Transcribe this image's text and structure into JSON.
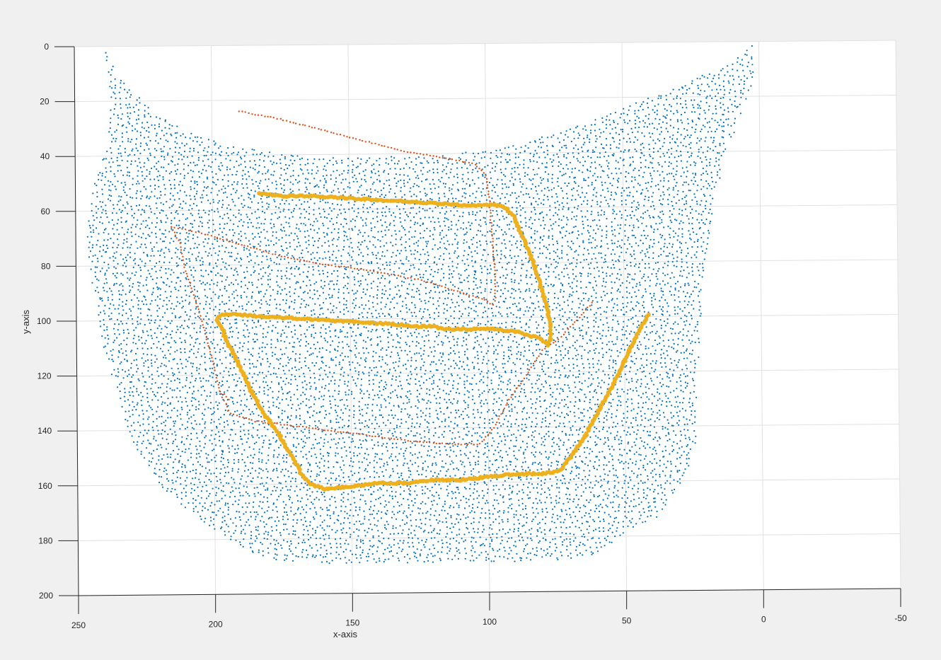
{
  "chart_data": {
    "type": "scatter",
    "title": "",
    "xlabel": "x-axis",
    "ylabel": "y-axis",
    "xlim": [
      250,
      -50
    ],
    "ylim": [
      0,
      200
    ],
    "x_direction": "reversed",
    "y_direction": "reversed",
    "grid": true,
    "x_ticks": [
      "250",
      "200",
      "150",
      "100",
      "50",
      "0",
      "-50"
    ],
    "y_ticks": [
      "0",
      "20",
      "40",
      "60",
      "80",
      "100",
      "120",
      "140",
      "160",
      "180",
      "200"
    ],
    "colors": {
      "series1": "#0072BD",
      "series2": "#D95319",
      "series3": "#EDB120",
      "background": "#f0f0f0",
      "plot_area": "#ffffff",
      "grid": "#e1e1e1"
    },
    "series": [
      {
        "marker": "dot-small",
        "color": "#0072BD",
        "region_outline": [
          [
            239,
            0
          ],
          [
            237,
            5
          ],
          [
            234,
            11
          ],
          [
            228,
            17
          ],
          [
            218,
            26
          ],
          [
            205,
            33
          ],
          [
            190,
            37
          ],
          [
            170,
            40
          ],
          [
            150,
            41
          ],
          [
            130,
            41
          ],
          [
            110,
            40
          ],
          [
            90,
            37
          ],
          [
            75,
            33
          ],
          [
            55,
            26
          ],
          [
            35,
            18
          ],
          [
            10,
            8
          ],
          [
            2,
            0
          ],
          [
            2,
            14
          ],
          [
            8,
            30
          ],
          [
            13,
            44
          ],
          [
            17,
            58
          ],
          [
            19,
            72
          ],
          [
            21,
            86
          ],
          [
            22,
            100
          ],
          [
            23,
            116
          ],
          [
            24,
            132
          ],
          [
            24,
            146
          ],
          [
            27,
            156
          ],
          [
            33,
            166
          ],
          [
            38,
            174
          ],
          [
            52,
            180
          ],
          [
            57,
            184
          ],
          [
            62,
            187
          ],
          [
            80,
            189
          ],
          [
            100,
            189
          ],
          [
            120,
            189
          ],
          [
            140,
            189
          ],
          [
            160,
            189
          ],
          [
            178,
            188
          ],
          [
            188,
            185
          ],
          [
            198,
            178
          ],
          [
            212,
            168
          ],
          [
            222,
            158
          ],
          [
            228,
            148
          ],
          [
            232,
            138
          ],
          [
            236,
            124
          ],
          [
            240,
            110
          ],
          [
            243,
            96
          ],
          [
            245,
            82
          ],
          [
            246,
            66
          ],
          [
            243,
            50
          ],
          [
            238,
            36
          ],
          [
            237,
            22
          ],
          [
            238,
            10
          ]
        ],
        "point_count_approx": 16000
      },
      {
        "marker": "dot-medium",
        "color": "#D95319",
        "paths": [
          [
            [
              190,
              24
            ],
            [
              175,
              27
            ],
            [
              160,
              31
            ],
            [
              145,
              35
            ],
            [
              130,
              39
            ],
            [
              118,
              41
            ],
            [
              104,
              44
            ],
            [
              100,
              48
            ],
            [
              99,
              55
            ],
            [
              98,
              70
            ],
            [
              97,
              85
            ],
            [
              97,
              95
            ]
          ],
          [
            [
              215,
              66
            ],
            [
              205,
              68
            ],
            [
              195,
              71
            ],
            [
              185,
              74
            ],
            [
              175,
              77
            ],
            [
              160,
              80
            ],
            [
              145,
              82
            ],
            [
              135,
              84
            ],
            [
              124,
              86
            ],
            [
              112,
              90
            ],
            [
              102,
              93
            ],
            [
              97,
              96
            ]
          ],
          [
            [
              215,
              66
            ],
            [
              212,
              72
            ],
            [
              210,
              82
            ],
            [
              206,
              94
            ],
            [
              203,
              105
            ],
            [
              200,
              116
            ],
            [
              198,
              126
            ],
            [
              194,
              134
            ],
            [
              185,
              137
            ],
            [
              170,
              139
            ],
            [
              155,
              141
            ],
            [
              140,
              143
            ],
            [
              126,
              145
            ],
            [
              112,
              146
            ],
            [
              103,
              146
            ],
            [
              98,
              140
            ],
            [
              93,
              131
            ],
            [
              88,
              124
            ],
            [
              84,
              118
            ],
            [
              80,
              112
            ],
            [
              74,
              108
            ],
            [
              68,
              102
            ],
            [
              61,
              94
            ]
          ],
          [
            [
              196,
              127
            ],
            [
              194,
              130
            ]
          ]
        ]
      },
      {
        "marker": "dot-large",
        "color": "#EDB120",
        "paths": [
          [
            [
              183,
              54
            ],
            [
              175,
              55
            ],
            [
              165,
              55
            ],
            [
              150,
              56
            ],
            [
              135,
              57
            ],
            [
              120,
              58
            ],
            [
              108,
              59
            ],
            [
              96,
              59
            ],
            [
              93,
              60
            ],
            [
              90,
              63
            ],
            [
              88,
              68
            ],
            [
              85,
              75
            ],
            [
              82,
              83
            ],
            [
              80,
              90
            ],
            [
              78,
              97
            ],
            [
              77,
              103
            ],
            [
              77,
              108
            ],
            [
              78,
              110
            ],
            [
              80,
              108
            ],
            [
              90,
              105
            ],
            [
              100,
              104
            ],
            [
              110,
              104
            ],
            [
              115,
              104
            ],
            [
              120,
              103
            ],
            [
              125,
              103
            ],
            [
              135,
              102
            ],
            [
              150,
              101
            ],
            [
              165,
              100
            ],
            [
              180,
              99
            ],
            [
              192,
              98
            ],
            [
              197,
              98
            ],
            [
              199,
              100
            ],
            [
              197,
              103
            ],
            [
              195,
              108
            ],
            [
              192,
              114
            ],
            [
              189,
              120
            ],
            [
              186,
              127
            ],
            [
              182,
              134
            ],
            [
              177,
              141
            ],
            [
              173,
              148
            ],
            [
              170,
              153
            ],
            [
              168,
              157
            ],
            [
              165,
              160
            ],
            [
              160,
              162
            ],
            [
              150,
              161
            ],
            [
              140,
              160
            ],
            [
              130,
              160
            ],
            [
              120,
              159
            ],
            [
              110,
              159
            ],
            [
              100,
              158
            ],
            [
              90,
              157
            ],
            [
              80,
              157
            ],
            [
              74,
              156
            ],
            [
              70,
              151
            ],
            [
              65,
              144
            ],
            [
              60,
              135
            ],
            [
              55,
              126
            ],
            [
              50,
              116
            ],
            [
              45,
              106
            ],
            [
              41,
              99
            ]
          ]
        ]
      }
    ]
  }
}
